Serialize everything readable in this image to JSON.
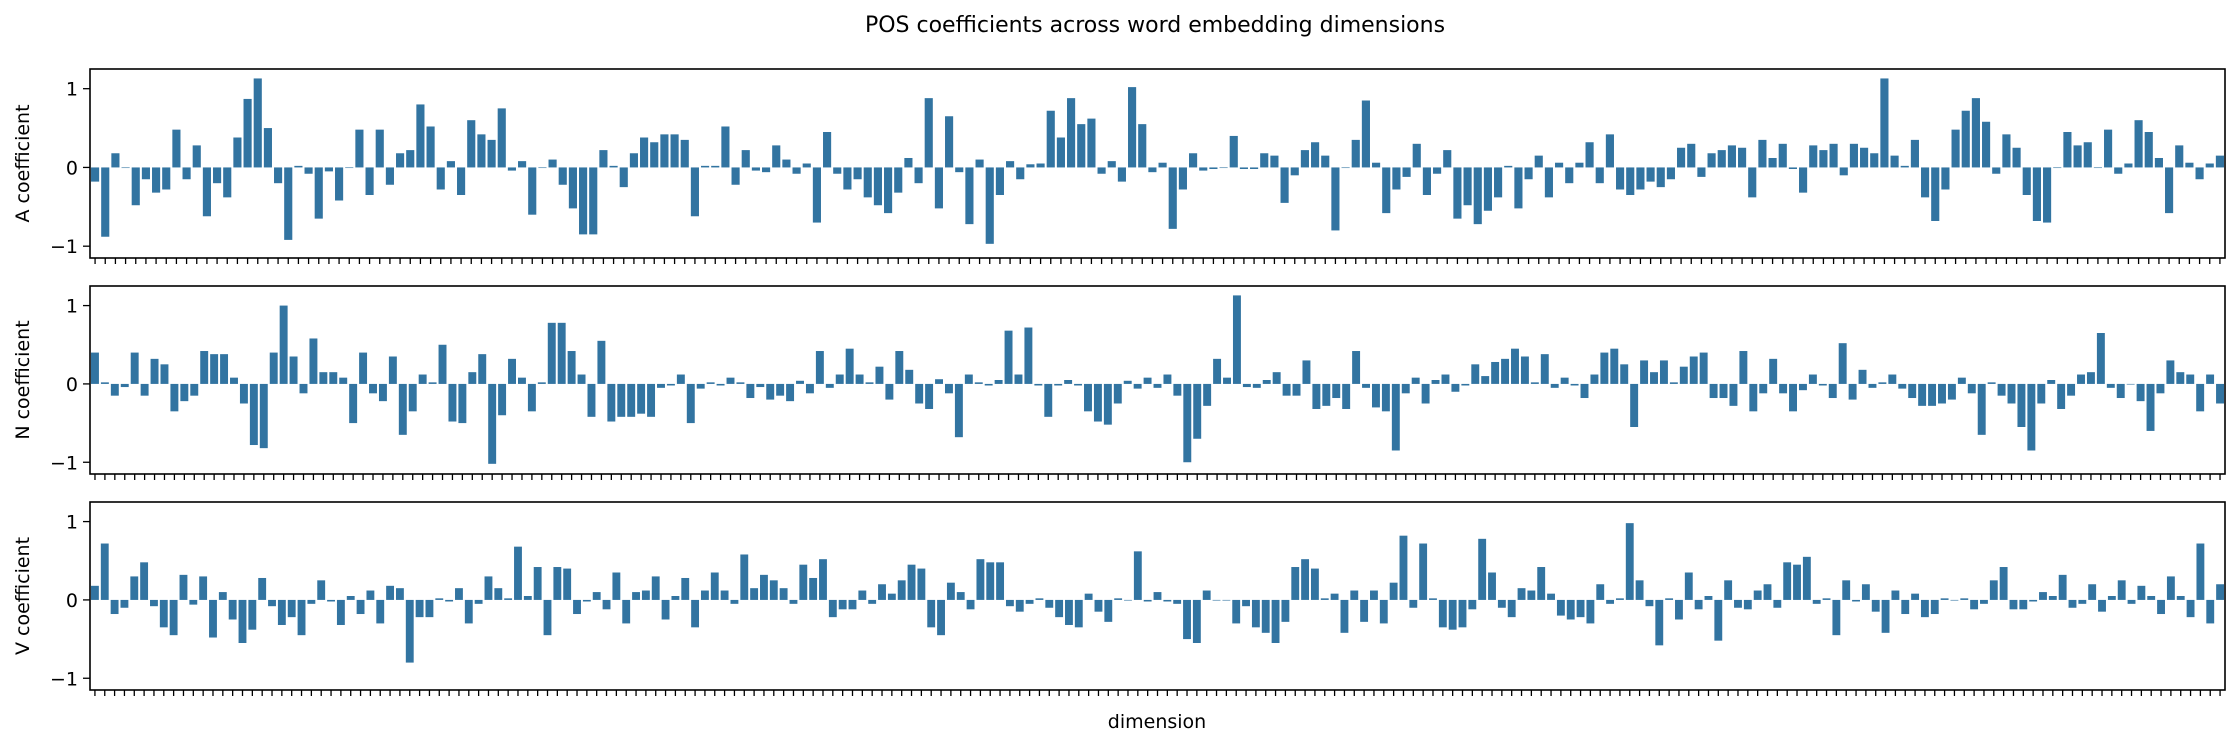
{
  "chart_data": [
    {
      "type": "bar",
      "title": "POS coefficients across word embedding dimensions",
      "xlabel": "dimension",
      "ylabel": "A coefficient",
      "ylim": [
        -1.15,
        1.25
      ],
      "yticks": [
        -1,
        0,
        1
      ],
      "color": "#3274a1",
      "xtick_labels_visible": false,
      "values": [
        -0.18,
        -0.88,
        0.18,
        0.0,
        -0.48,
        -0.15,
        -0.32,
        -0.28,
        0.48,
        -0.15,
        0.28,
        -0.62,
        -0.2,
        -0.38,
        0.38,
        0.87,
        1.13,
        0.5,
        -0.2,
        -0.92,
        0.02,
        -0.08,
        -0.65,
        -0.05,
        -0.42,
        0.0,
        0.48,
        -0.35,
        0.48,
        -0.22,
        0.18,
        0.22,
        0.8,
        0.52,
        -0.28,
        0.08,
        -0.35,
        0.6,
        0.42,
        0.35,
        0.75,
        -0.04,
        0.08,
        -0.6,
        0.0,
        0.1,
        -0.22,
        -0.52,
        -0.85,
        -0.85,
        0.22,
        0.02,
        -0.25,
        0.18,
        0.38,
        0.32,
        0.42,
        0.42,
        0.35,
        -0.62,
        0.02,
        0.02,
        0.52,
        -0.22,
        0.22,
        -0.04,
        -0.06,
        0.28,
        0.1,
        -0.08,
        0.05,
        -0.7,
        0.45,
        -0.08,
        -0.28,
        -0.15,
        -0.38,
        -0.48,
        -0.58,
        -0.32,
        0.12,
        -0.2,
        0.88,
        -0.52,
        0.65,
        -0.06,
        -0.72,
        0.1,
        -0.97,
        -0.35,
        0.08,
        -0.15,
        0.04,
        0.05,
        0.72,
        0.38,
        0.88,
        0.55,
        0.62,
        -0.08,
        0.08,
        -0.18,
        1.02,
        0.55,
        -0.06,
        0.06,
        -0.78,
        -0.28,
        0.18,
        -0.04,
        -0.02,
        0.0,
        0.4,
        -0.02,
        -0.02,
        0.18,
        0.15,
        -0.45,
        -0.1,
        0.22,
        0.32,
        0.15,
        -0.8,
        0.0,
        0.35,
        0.85,
        0.06,
        -0.58,
        -0.28,
        -0.12,
        0.3,
        -0.35,
        -0.08,
        0.22,
        -0.65,
        -0.48,
        -0.72,
        -0.55,
        -0.38,
        0.02,
        -0.52,
        -0.15,
        0.15,
        -0.38,
        0.06,
        -0.2,
        0.06,
        0.32,
        -0.2,
        0.42,
        -0.28,
        -0.35,
        -0.28,
        -0.18,
        -0.25,
        -0.15,
        0.25,
        0.3,
        -0.12,
        0.18,
        0.22,
        0.28,
        0.25,
        -0.38,
        0.35,
        0.12,
        0.3,
        -0.02,
        -0.32,
        0.28,
        0.22,
        0.3,
        -0.1,
        0.3,
        0.25,
        0.18,
        1.13,
        0.15,
        0.02,
        0.35,
        -0.38,
        -0.68,
        -0.28,
        0.48,
        0.72,
        0.88,
        0.58,
        -0.08,
        0.42,
        0.25,
        -0.35,
        -0.68,
        -0.7,
        0.0,
        0.45,
        0.28,
        0.32,
        0.0,
        0.48,
        -0.08,
        0.05,
        0.6,
        0.45,
        0.12,
        -0.58,
        0.28,
        0.06,
        -0.15,
        0.05,
        0.15
      ]
    },
    {
      "type": "bar",
      "ylabel": "N coefficient",
      "ylim": [
        -1.15,
        1.25
      ],
      "yticks": [
        -1,
        0,
        1
      ],
      "color": "#3274a1",
      "values": [
        0.4,
        0.02,
        -0.15,
        -0.04,
        0.4,
        -0.15,
        0.32,
        0.25,
        -0.35,
        -0.22,
        -0.15,
        0.42,
        0.38,
        0.38,
        0.08,
        -0.25,
        -0.78,
        -0.82,
        0.4,
        1.0,
        0.35,
        -0.12,
        0.58,
        0.15,
        0.15,
        0.08,
        -0.5,
        0.4,
        -0.12,
        -0.22,
        0.35,
        -0.65,
        -0.35,
        0.12,
        0.02,
        0.5,
        -0.48,
        -0.5,
        0.15,
        0.38,
        -1.02,
        -0.4,
        0.32,
        0.08,
        -0.35,
        0.02,
        0.78,
        0.78,
        0.42,
        0.12,
        -0.42,
        0.55,
        -0.48,
        -0.42,
        -0.42,
        -0.38,
        -0.42,
        -0.05,
        -0.02,
        0.12,
        -0.5,
        -0.06,
        0.02,
        -0.02,
        0.08,
        0.02,
        -0.18,
        -0.04,
        -0.2,
        -0.15,
        -0.22,
        0.04,
        -0.12,
        0.42,
        -0.05,
        0.12,
        0.45,
        0.12,
        0.02,
        0.22,
        -0.2,
        0.42,
        0.18,
        -0.25,
        -0.32,
        0.06,
        -0.12,
        -0.68,
        0.12,
        0.02,
        -0.02,
        0.05,
        0.68,
        0.12,
        0.72,
        -0.02,
        -0.42,
        -0.02,
        0.05,
        -0.02,
        -0.35,
        -0.48,
        -0.52,
        -0.25,
        0.04,
        -0.06,
        0.08,
        -0.05,
        0.12,
        -0.15,
        -1.0,
        -0.7,
        -0.28,
        0.32,
        0.08,
        1.13,
        -0.04,
        -0.05,
        0.05,
        0.15,
        -0.15,
        -0.15,
        0.3,
        -0.32,
        -0.28,
        -0.18,
        -0.32,
        0.42,
        -0.05,
        -0.3,
        -0.35,
        -0.85,
        -0.12,
        0.08,
        -0.25,
        0.05,
        0.12,
        -0.1,
        -0.02,
        0.25,
        0.1,
        0.28,
        0.32,
        0.45,
        0.35,
        0.02,
        0.38,
        -0.05,
        0.08,
        -0.02,
        -0.18,
        0.12,
        0.4,
        0.45,
        0.25,
        -0.55,
        0.3,
        0.15,
        0.3,
        0.02,
        0.22,
        0.35,
        0.4,
        -0.18,
        -0.18,
        -0.28,
        0.42,
        -0.35,
        -0.12,
        0.32,
        -0.12,
        -0.35,
        -0.08,
        0.12,
        -0.02,
        -0.18,
        0.52,
        -0.2,
        0.18,
        -0.05,
        0.02,
        0.12,
        -0.06,
        -0.18,
        -0.28,
        -0.28,
        -0.25,
        -0.2,
        0.08,
        -0.12,
        -0.65,
        0.02,
        -0.15,
        -0.25,
        -0.55,
        -0.85,
        -0.25,
        0.05,
        -0.32,
        -0.15,
        0.12,
        0.15,
        0.65,
        -0.05,
        -0.18,
        0.0,
        -0.22,
        -0.6,
        -0.12,
        0.3,
        0.15,
        0.12,
        -0.35,
        0.12,
        -0.25
      ]
    },
    {
      "type": "bar",
      "ylabel": "V coefficient",
      "ylim": [
        -1.15,
        1.25
      ],
      "yticks": [
        -1,
        0,
        1
      ],
      "color": "#3274a1",
      "values": [
        0.18,
        0.72,
        -0.18,
        -0.1,
        0.3,
        0.48,
        -0.08,
        -0.35,
        -0.45,
        0.32,
        -0.06,
        0.3,
        -0.48,
        0.1,
        -0.25,
        -0.55,
        -0.38,
        0.28,
        -0.08,
        -0.32,
        -0.22,
        -0.45,
        -0.05,
        0.25,
        -0.02,
        -0.32,
        0.05,
        -0.18,
        0.12,
        -0.3,
        0.18,
        0.15,
        -0.8,
        -0.22,
        -0.22,
        0.02,
        -0.02,
        0.15,
        -0.3,
        -0.05,
        0.3,
        0.15,
        0.02,
        0.68,
        0.05,
        0.42,
        -0.45,
        0.42,
        0.4,
        -0.18,
        -0.02,
        0.1,
        -0.12,
        0.35,
        -0.3,
        0.1,
        0.12,
        0.3,
        -0.25,
        0.05,
        0.28,
        -0.35,
        0.12,
        0.35,
        0.12,
        -0.05,
        0.58,
        0.15,
        0.32,
        0.25,
        0.15,
        -0.05,
        0.45,
        0.28,
        0.52,
        -0.22,
        -0.12,
        -0.12,
        0.12,
        -0.05,
        0.2,
        0.08,
        0.25,
        0.45,
        0.4,
        -0.35,
        -0.45,
        0.22,
        0.1,
        -0.12,
        0.52,
        0.48,
        0.48,
        -0.08,
        -0.15,
        -0.05,
        0.02,
        -0.1,
        -0.22,
        -0.32,
        -0.35,
        0.08,
        -0.15,
        -0.28,
        0.02,
        0.0,
        0.62,
        -0.02,
        0.1,
        -0.02,
        -0.05,
        -0.5,
        -0.55,
        0.12,
        0.0,
        0.0,
        -0.3,
        -0.08,
        -0.35,
        -0.42,
        -0.55,
        -0.28,
        0.42,
        0.52,
        0.4,
        0.02,
        0.08,
        -0.42,
        0.12,
        -0.28,
        0.12,
        -0.3,
        0.22,
        0.82,
        -0.1,
        0.72,
        0.02,
        -0.35,
        -0.38,
        -0.35,
        -0.12,
        0.78,
        0.35,
        -0.1,
        -0.22,
        0.15,
        0.12,
        0.42,
        0.08,
        -0.2,
        -0.25,
        -0.22,
        -0.3,
        0.2,
        -0.05,
        0.02,
        0.98,
        0.25,
        -0.08,
        -0.58,
        0.02,
        -0.25,
        0.35,
        -0.12,
        0.05,
        -0.52,
        0.25,
        -0.1,
        -0.12,
        0.12,
        0.2,
        -0.1,
        0.48,
        0.45,
        0.55,
        -0.05,
        0.02,
        -0.45,
        0.25,
        -0.02,
        0.2,
        -0.15,
        -0.42,
        0.12,
        -0.18,
        0.08,
        -0.22,
        -0.18,
        0.02,
        0.0,
        0.02,
        -0.12,
        -0.05,
        0.25,
        0.42,
        -0.12,
        -0.12,
        -0.02,
        0.1,
        0.05,
        0.32,
        -0.1,
        -0.05,
        0.2,
        -0.15,
        0.05,
        0.25,
        -0.05,
        0.18,
        0.05,
        -0.18,
        0.3,
        0.05,
        -0.22,
        0.72,
        -0.3,
        0.2
      ]
    }
  ]
}
